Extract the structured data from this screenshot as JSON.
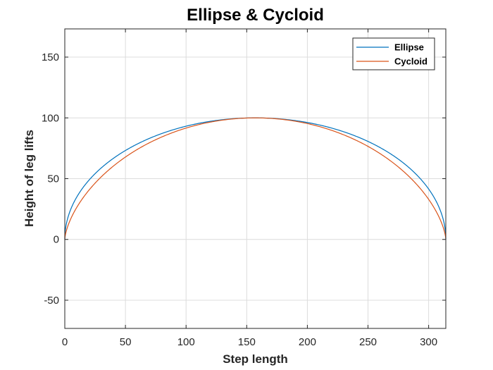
{
  "chart_data": {
    "type": "line",
    "title": "Ellipse  &  Cycloid",
    "xlabel": "Step length",
    "ylabel": "Height of leg lifts",
    "xlim": [
      0,
      314.159
    ],
    "ylim": [
      -73.2,
      173.2
    ],
    "xticks": [
      0,
      50,
      100,
      150,
      200,
      250,
      300
    ],
    "yticks": [
      -50,
      0,
      50,
      100,
      150
    ],
    "grid": true,
    "legend_position": "top-right",
    "curve_params": {
      "ellipse_semi_axis_a": 157.08,
      "ellipse_height_b": 100,
      "cycloid_radius_r": 50
    },
    "series": [
      {
        "name": "Ellipse",
        "color": "#0072BD",
        "x": [
          0,
          5,
          15,
          30,
          50,
          75,
          100,
          125,
          150,
          157.08,
          175,
          200,
          225,
          250,
          275,
          300,
          310,
          314.16
        ],
        "y": [
          0,
          24.8,
          42.1,
          56.8,
          69.8,
          81.9,
          90.6,
          97.1,
          99.9,
          100,
          99.3,
          96.2,
          88.8,
          77.3,
          60.9,
          36.3,
          17.0,
          0
        ]
      },
      {
        "name": "Cycloid",
        "color": "#D95319",
        "x": [
          0,
          4.12,
          14.17,
          32.3,
          55.25,
          84.6,
          114.2,
          142.4,
          157.08,
          171.8,
          200.0,
          229.6,
          258.9,
          281.9,
          300.0,
          310.0,
          314.16
        ],
        "y": [
          0,
          18.2,
          35.0,
          53.5,
          70.6,
          85.4,
          95.0,
          99.5,
          100,
          99.5,
          95.0,
          85.4,
          70.6,
          53.5,
          35.0,
          18.2,
          0
        ]
      }
    ]
  }
}
